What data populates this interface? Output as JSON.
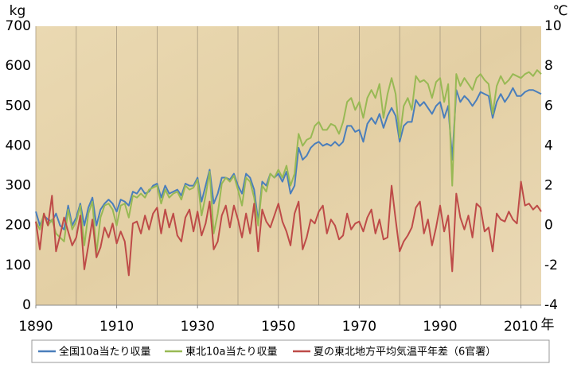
{
  "chart_data": {
    "type": "line",
    "ylabel": "kg",
    "y2label": "℃",
    "xlabel": "年",
    "x": [
      1890,
      1891,
      1892,
      1893,
      1894,
      1895,
      1896,
      1897,
      1898,
      1899,
      1900,
      1901,
      1902,
      1903,
      1904,
      1905,
      1906,
      1907,
      1908,
      1909,
      1910,
      1911,
      1912,
      1913,
      1914,
      1915,
      1916,
      1917,
      1918,
      1919,
      1920,
      1921,
      1922,
      1923,
      1924,
      1925,
      1926,
      1927,
      1928,
      1929,
      1930,
      1931,
      1932,
      1933,
      1934,
      1935,
      1936,
      1937,
      1938,
      1939,
      1940,
      1941,
      1942,
      1943,
      1944,
      1945,
      1946,
      1947,
      1948,
      1949,
      1950,
      1951,
      1952,
      1953,
      1954,
      1955,
      1956,
      1957,
      1958,
      1959,
      1960,
      1961,
      1962,
      1963,
      1964,
      1965,
      1966,
      1967,
      1968,
      1969,
      1970,
      1971,
      1972,
      1973,
      1974,
      1975,
      1976,
      1977,
      1978,
      1979,
      1980,
      1981,
      1982,
      1983,
      1984,
      1985,
      1986,
      1987,
      1988,
      1989,
      1990,
      1991,
      1992,
      1993,
      1994,
      1995,
      1996,
      1997,
      1998,
      1999,
      2000,
      2001,
      2002,
      2003,
      2004,
      2005,
      2006,
      2007,
      2008,
      2009,
      2010,
      2011,
      2012,
      2013,
      2014,
      2015
    ],
    "xlim": [
      1890,
      2015
    ],
    "xticks": [
      1890,
      1910,
      1930,
      1950,
      1970,
      1990,
      2010
    ],
    "xgrid": [
      1890,
      1900,
      1910,
      1920,
      1930,
      1940,
      1950,
      1960,
      1970,
      1980,
      1990,
      2000,
      2010
    ],
    "ylim": [
      0,
      700
    ],
    "yticks": [
      0,
      100,
      200,
      300,
      400,
      500,
      600,
      700
    ],
    "y2lim": [
      -4,
      10
    ],
    "y2ticks": [
      -4,
      -2,
      0,
      2,
      4,
      6,
      8,
      10
    ],
    "series": [
      {
        "name": "全国10a当たり収量",
        "color": "#4a7ebb",
        "values": [
          235,
          200,
          225,
          215,
          210,
          230,
          200,
          190,
          250,
          200,
          220,
          255,
          200,
          245,
          270,
          200,
          240,
          255,
          265,
          255,
          235,
          265,
          260,
          250,
          285,
          280,
          295,
          280,
          285,
          300,
          305,
          270,
          300,
          280,
          285,
          290,
          275,
          305,
          300,
          300,
          320,
          260,
          300,
          340,
          255,
          280,
          320,
          320,
          315,
          330,
          300,
          280,
          330,
          320,
          290,
          210,
          310,
          300,
          330,
          320,
          330,
          310,
          335,
          280,
          300,
          395,
          365,
          375,
          395,
          405,
          410,
          400,
          405,
          400,
          410,
          400,
          410,
          450,
          450,
          435,
          440,
          410,
          455,
          470,
          455,
          480,
          445,
          475,
          495,
          475,
          410,
          450,
          460,
          460,
          515,
          500,
          510,
          495,
          480,
          500,
          510,
          470,
          500,
          365,
          540,
          510,
          525,
          515,
          500,
          515,
          535,
          530,
          525,
          470,
          510,
          530,
          510,
          525,
          545,
          525,
          525,
          535,
          540,
          540,
          535,
          530
        ]
      },
      {
        "name": "東北10a当たり収量",
        "color": "#98b954",
        "values": [
          210,
          190,
          230,
          200,
          215,
          180,
          170,
          160,
          240,
          190,
          210,
          250,
          150,
          230,
          260,
          130,
          220,
          250,
          255,
          240,
          200,
          250,
          255,
          220,
          275,
          270,
          280,
          270,
          290,
          295,
          300,
          255,
          290,
          270,
          280,
          285,
          265,
          300,
          290,
          295,
          315,
          225,
          275,
          335,
          180,
          230,
          305,
          320,
          310,
          325,
          290,
          250,
          320,
          310,
          270,
          200,
          300,
          285,
          330,
          320,
          340,
          320,
          350,
          300,
          330,
          430,
          400,
          415,
          420,
          450,
          460,
          440,
          440,
          455,
          450,
          430,
          460,
          510,
          520,
          490,
          510,
          470,
          520,
          540,
          520,
          555,
          470,
          530,
          570,
          530,
          420,
          500,
          520,
          490,
          575,
          560,
          565,
          555,
          520,
          560,
          570,
          510,
          555,
          300,
          580,
          550,
          570,
          555,
          540,
          570,
          580,
          565,
          555,
          480,
          550,
          575,
          555,
          565,
          580,
          575,
          570,
          580,
          585,
          575,
          590,
          580
        ]
      },
      {
        "name": "夏の東北地方平均気温平年差（6官署）",
        "color": "#be4b48",
        "axis": "y2",
        "values": [
          0.2,
          -1.2,
          0.6,
          0.0,
          1.5,
          -1.3,
          -0.5,
          0.4,
          -0.3,
          -1.0,
          -0.6,
          0.5,
          -2.2,
          -1.0,
          0.3,
          -1.6,
          -1.1,
          -0.1,
          -0.6,
          0.1,
          -0.9,
          -0.3,
          -0.8,
          -2.5,
          0.1,
          0.2,
          -0.4,
          0.5,
          -0.2,
          0.6,
          0.9,
          -0.4,
          0.8,
          -0.1,
          0.6,
          -0.5,
          -0.8,
          0.4,
          0.8,
          -0.3,
          0.7,
          -0.5,
          0.1,
          1.2,
          -1.2,
          -0.8,
          0.5,
          1.0,
          -0.1,
          1.0,
          0.3,
          -0.6,
          0.6,
          -0.4,
          1.1,
          -1.3,
          0.8,
          0.2,
          -0.1,
          0.5,
          1.1,
          0.2,
          -0.3,
          -1.0,
          0.6,
          1.2,
          -1.2,
          -0.6,
          0.3,
          0.1,
          0.7,
          1.0,
          -0.4,
          0.3,
          0.0,
          -0.7,
          -0.5,
          0.6,
          -0.2,
          0.1,
          0.2,
          -0.3,
          0.4,
          0.8,
          -0.4,
          0.3,
          -0.7,
          -0.6,
          2.0,
          0.3,
          -1.3,
          -0.8,
          -0.5,
          -0.1,
          0.9,
          1.2,
          -0.4,
          0.3,
          -1.0,
          -0.1,
          1.0,
          -0.3,
          0.5,
          -2.3,
          1.6,
          0.4,
          -0.2,
          0.5,
          -0.6,
          1.1,
          0.9,
          -0.3,
          -0.1,
          -1.3,
          0.6,
          0.3,
          0.2,
          0.7,
          0.3,
          0.1,
          2.2,
          1.0,
          1.1,
          0.8,
          1.0,
          0.7
        ]
      }
    ],
    "legend": "bottom"
  }
}
